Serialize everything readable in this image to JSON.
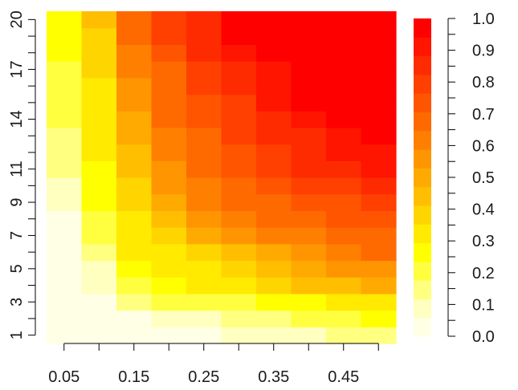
{
  "chart_data": {
    "type": "heatmap",
    "title": "",
    "xlabel": "",
    "ylabel": "",
    "x_tick_labels": [
      "0.05",
      "0.15",
      "0.25",
      "0.35",
      "0.45"
    ],
    "y_tick_labels": [
      "1",
      "3",
      "5",
      "7",
      "9",
      "11",
      "14",
      "17",
      "20"
    ],
    "colorbar_tick_labels": [
      "0.0",
      "0.1",
      "0.2",
      "0.3",
      "0.4",
      "0.5",
      "0.6",
      "0.7",
      "0.8",
      "0.9",
      "1.0"
    ],
    "x": [
      0.05,
      0.1,
      0.15,
      0.2,
      0.25,
      0.3,
      0.35,
      0.4,
      0.45,
      0.5
    ],
    "y": [
      1,
      2,
      3,
      4,
      5,
      6,
      7,
      8,
      9,
      10,
      11,
      12,
      13,
      14,
      15,
      16,
      17,
      18,
      19,
      20
    ],
    "zlim": [
      0,
      1
    ],
    "palette": [
      "#FFFFE6",
      "#FFFFBF",
      "#FFFF80",
      "#FFFF40",
      "#FFFF00",
      "#FFEA00",
      "#FFD500",
      "#FFBF00",
      "#FFAA00",
      "#FF9500",
      "#FF8000",
      "#FF6A00",
      "#FF5500",
      "#FF4000",
      "#FF2B00",
      "#FF1500",
      "#FF0000"
    ],
    "z": [
      [
        0.0,
        0.0,
        0.05,
        0.05,
        0.05,
        0.1,
        0.1,
        0.1,
        0.15,
        0.15
      ],
      [
        0.0,
        0.05,
        0.05,
        0.1,
        0.1,
        0.15,
        0.15,
        0.2,
        0.2,
        0.25
      ],
      [
        0.0,
        0.05,
        0.15,
        0.2,
        0.2,
        0.2,
        0.25,
        0.25,
        0.3,
        0.3
      ],
      [
        0.0,
        0.1,
        0.2,
        0.25,
        0.3,
        0.35,
        0.4,
        0.45,
        0.45,
        0.5
      ],
      [
        0.05,
        0.1,
        0.25,
        0.3,
        0.35,
        0.4,
        0.45,
        0.5,
        0.55,
        0.55
      ],
      [
        0.05,
        0.15,
        0.3,
        0.35,
        0.4,
        0.45,
        0.5,
        0.55,
        0.6,
        0.65
      ],
      [
        0.05,
        0.2,
        0.35,
        0.4,
        0.5,
        0.55,
        0.6,
        0.6,
        0.65,
        0.7
      ],
      [
        0.05,
        0.2,
        0.35,
        0.45,
        0.55,
        0.6,
        0.65,
        0.7,
        0.75,
        0.75
      ],
      [
        0.1,
        0.25,
        0.4,
        0.5,
        0.6,
        0.65,
        0.7,
        0.75,
        0.75,
        0.8
      ],
      [
        0.1,
        0.25,
        0.4,
        0.55,
        0.6,
        0.7,
        0.75,
        0.8,
        0.8,
        0.85
      ],
      [
        0.15,
        0.25,
        0.45,
        0.55,
        0.65,
        0.75,
        0.8,
        0.85,
        0.85,
        0.9
      ],
      [
        0.15,
        0.3,
        0.45,
        0.6,
        0.7,
        0.75,
        0.8,
        0.85,
        0.9,
        0.9
      ],
      [
        0.15,
        0.3,
        0.5,
        0.6,
        0.7,
        0.8,
        0.85,
        0.85,
        0.9,
        0.95
      ],
      [
        0.2,
        0.3,
        0.5,
        0.65,
        0.75,
        0.8,
        0.85,
        0.9,
        0.95,
        0.95
      ],
      [
        0.2,
        0.35,
        0.55,
        0.65,
        0.75,
        0.8,
        0.9,
        0.95,
        0.95,
        0.95
      ],
      [
        0.2,
        0.35,
        0.55,
        0.7,
        0.8,
        0.85,
        0.9,
        0.95,
        1.0,
        1.0
      ],
      [
        0.2,
        0.4,
        0.6,
        0.7,
        0.8,
        0.85,
        0.9,
        0.95,
        1.0,
        1.0
      ],
      [
        0.25,
        0.4,
        0.6,
        0.75,
        0.85,
        0.9,
        0.95,
        1.0,
        1.0,
        1.0
      ],
      [
        0.25,
        0.4,
        0.65,
        0.8,
        0.85,
        0.95,
        0.95,
        1.0,
        1.0,
        1.0
      ],
      [
        0.25,
        0.45,
        0.7,
        0.8,
        0.85,
        0.95,
        1.0,
        1.0,
        1.0,
        1.0
      ]
    ],
    "legend": "colorbar, right",
    "grid": false
  }
}
